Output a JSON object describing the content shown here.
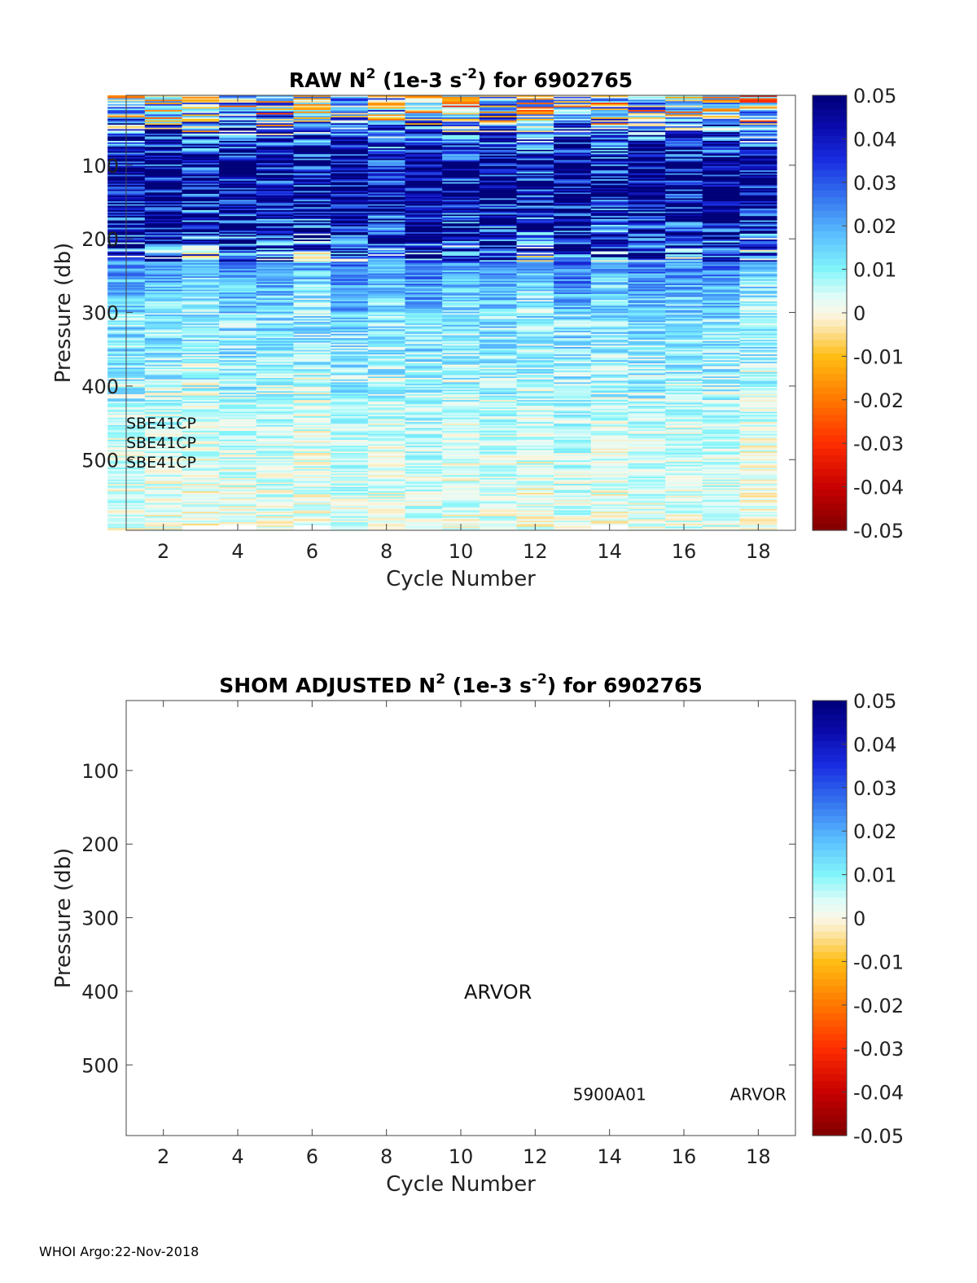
{
  "chart_data": [
    {
      "type": "heatmap",
      "title": {
        "pre": "RAW N",
        "sup1": "2",
        "mid": " (1e-3 s",
        "sup2": "-2",
        "post": ") for 6902765"
      },
      "xlabel": "Cycle Number",
      "ylabel": "Pressure (db)",
      "xlim": [
        1,
        19
      ],
      "ylim": [
        5,
        596
      ],
      "y_reversed": true,
      "xticks": [
        2,
        4,
        6,
        8,
        10,
        12,
        14,
        16,
        18
      ],
      "yticks": [
        100,
        200,
        300,
        400,
        500
      ],
      "cycles": [
        1,
        2,
        3,
        4,
        5,
        6,
        7,
        8,
        9,
        10,
        11,
        12,
        13,
        14,
        15,
        16,
        17,
        18
      ],
      "pressure_bin_db": 2,
      "profile_bottom_db": [
        596,
        596,
        588,
        588,
        596,
        588,
        596,
        596,
        596,
        596,
        596,
        596,
        596,
        588,
        596,
        596,
        596,
        596
      ],
      "n2_mean_profile": {
        "pressure": [
          5,
          30,
          60,
          90,
          140,
          190,
          230,
          280,
          340,
          400,
          460,
          520,
          596
        ],
        "value": [
          0.002,
          0.012,
          0.03,
          0.046,
          0.048,
          0.036,
          0.022,
          0.013,
          0.01,
          0.007,
          0.004,
          0.003,
          0.002
        ]
      },
      "annotations": [
        "SBE41CP",
        "SBE41CP",
        "SBE41CP"
      ],
      "colorbar": {
        "min": -0.05,
        "max": 0.05,
        "ticks": [
          "0.05",
          "0.04",
          "0.03",
          "0.02",
          "0.01",
          "0",
          "-0.01",
          "-0.02",
          "-0.03",
          "-0.04",
          "-0.05"
        ]
      }
    },
    {
      "type": "heatmap",
      "title": {
        "pre": "SHOM  ADJUSTED N",
        "sup1": "2",
        "mid": " (1e-3 s",
        "sup2": "-2",
        "post": ") for 6902765"
      },
      "xlabel": "Cycle Number",
      "ylabel": "Pressure (db)",
      "xlim": [
        1,
        19
      ],
      "ylim": [
        5,
        596
      ],
      "y_reversed": true,
      "xticks": [
        2,
        4,
        6,
        8,
        10,
        12,
        14,
        16,
        18
      ],
      "yticks": [
        100,
        200,
        300,
        400,
        500
      ],
      "values": [],
      "annotations": [
        {
          "text": "ARVOR",
          "x": 11,
          "y": 400
        },
        {
          "text": "5900A01",
          "x": 14,
          "y": 540
        },
        {
          "text": "ARVOR",
          "x": 18,
          "y": 540
        }
      ],
      "colorbar": {
        "min": -0.05,
        "max": 0.05,
        "ticks": [
          "0.05",
          "0.04",
          "0.03",
          "0.02",
          "0.01",
          "0",
          "-0.01",
          "-0.02",
          "-0.03",
          "-0.04",
          "-0.05"
        ]
      }
    }
  ],
  "footer": "WHOI Argo:22-Nov-2018"
}
